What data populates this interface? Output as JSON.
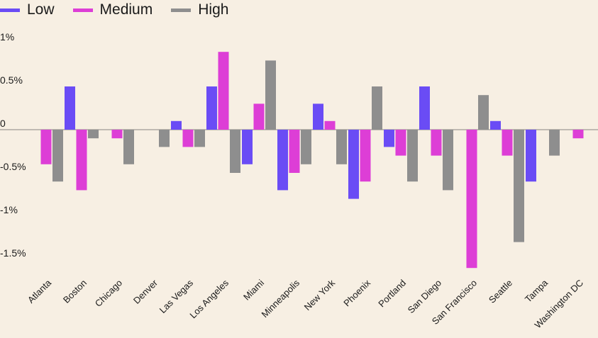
{
  "chart_data": {
    "type": "bar",
    "title": "",
    "xlabel": "",
    "ylabel": "",
    "ylim": [
      -1.6,
      1.0
    ],
    "yticks": [
      1,
      0.5,
      0,
      -0.5,
      -1,
      -1.5
    ],
    "ytick_labels": [
      "1%",
      "0.5%",
      "0",
      "-0.5%",
      "-1%",
      "-1.5%"
    ],
    "grid": false,
    "legend_position": "top-left",
    "categories": [
      "Atlanta",
      "Boston",
      "Chicago",
      "Denver",
      "Las Vegas",
      "Los Angeles",
      "Miami",
      "Minneapolis",
      "New York",
      "Phoenix",
      "Portland",
      "San Diego",
      "San Francisco",
      "Seattle",
      "Tampa",
      "Washington DC"
    ],
    "series": [
      {
        "name": "Low",
        "color": "#6a4cf5",
        "values": [
          0,
          0.5,
          0,
          0,
          0.1,
          0.5,
          -0.4,
          -0.7,
          0.3,
          -0.8,
          -0.2,
          0.5,
          0,
          0.1,
          -0.6,
          0
        ]
      },
      {
        "name": "Medium",
        "color": "#dd3ed6",
        "values": [
          -0.4,
          -0.7,
          -0.1,
          0,
          -0.2,
          0.9,
          0.3,
          -0.5,
          0.1,
          -0.6,
          -0.3,
          -0.3,
          -1.6,
          -0.3,
          0,
          -0.1
        ]
      },
      {
        "name": "High",
        "color": "#8e8e8e",
        "values": [
          -0.6,
          -0.1,
          -0.4,
          -0.2,
          -0.2,
          -0.5,
          0.8,
          -0.4,
          -0.4,
          0.5,
          -0.6,
          -0.7,
          0.4,
          -1.3,
          -0.3,
          0
        ]
      }
    ]
  }
}
